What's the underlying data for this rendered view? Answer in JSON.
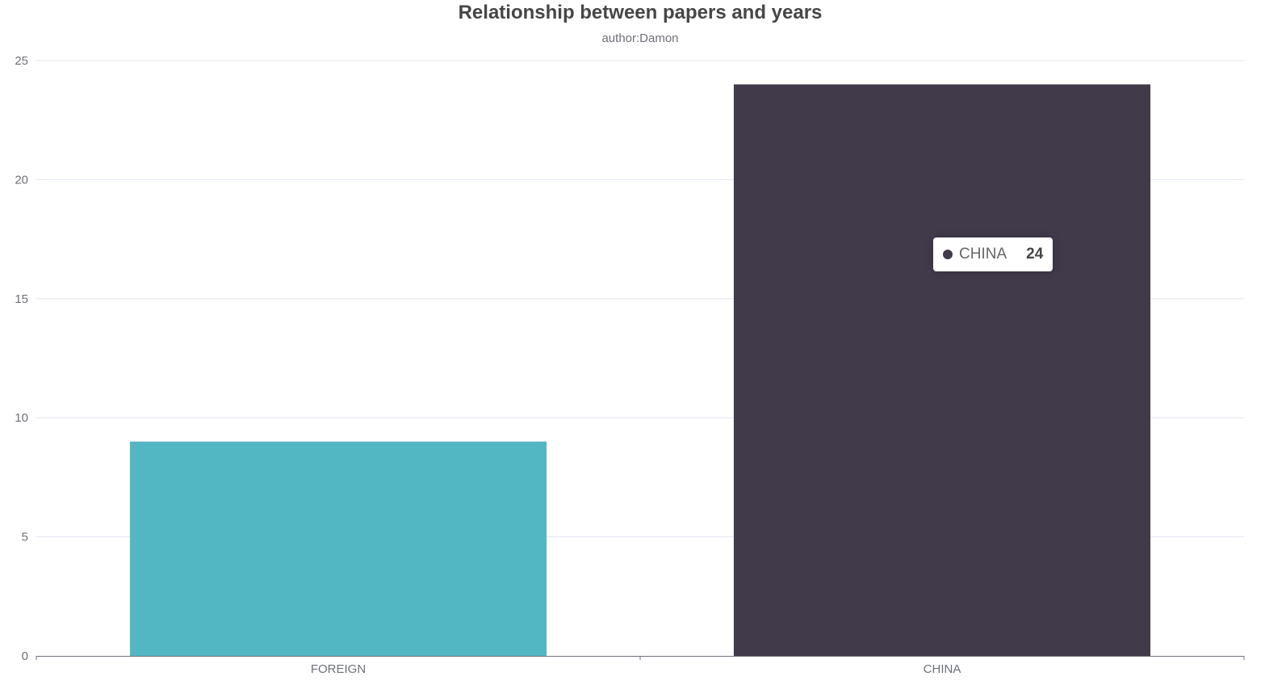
{
  "chart_data": {
    "type": "bar",
    "title": "Relationship between papers and years",
    "subtitle": "author:Damon",
    "categories": [
      "FOREIGN",
      "CHINA"
    ],
    "values": [
      9,
      24
    ],
    "colors": [
      "#52b6c3",
      "#413a4a"
    ],
    "ylim": [
      0,
      25
    ],
    "yticks": [
      0,
      5,
      10,
      15,
      20,
      25
    ],
    "grid": true,
    "tooltip": {
      "label": "CHINA",
      "value": "24",
      "color": "#413a4a"
    }
  }
}
